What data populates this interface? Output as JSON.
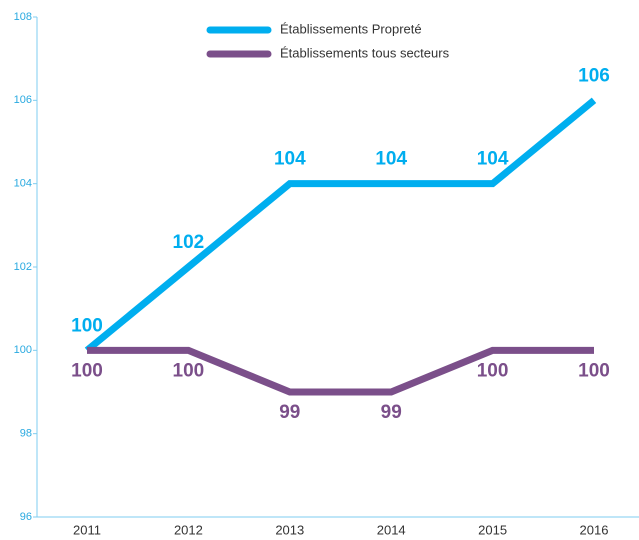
{
  "chart_data": {
    "type": "line",
    "categories": [
      "2011",
      "2012",
      "2013",
      "2014",
      "2015",
      "2016"
    ],
    "series": [
      {
        "name": "Établissements Propreté",
        "color": "#00aeef",
        "values": [
          100,
          102,
          104,
          104,
          104,
          106
        ]
      },
      {
        "name": "Établissements tous secteurs",
        "color": "#7b4f8a",
        "values": [
          100,
          100,
          99,
          99,
          100,
          100
        ]
      }
    ],
    "ylim": [
      96,
      108
    ],
    "yticks": [
      96,
      98,
      100,
      102,
      104,
      106,
      108
    ]
  }
}
